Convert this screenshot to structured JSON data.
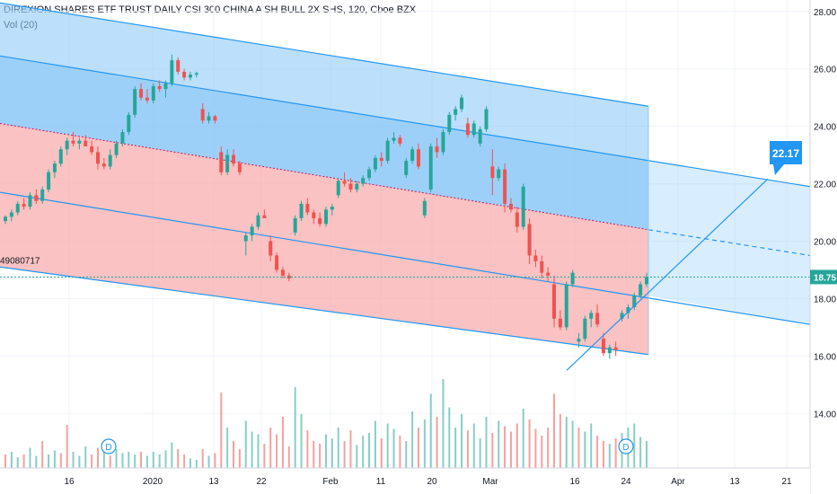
{
  "header": {
    "symbol_line": "DIREXION SHARES ETF TRUST DAILY CSI 300 CHINA A SH BULL 2X SHS, 120, Cboe BZX",
    "volume_line": "Vol (20)"
  },
  "left_label": "49080717",
  "price_badge": {
    "text": "18.75",
    "color": "#26a69a"
  },
  "callout": {
    "text": "22.17",
    "color": "#2196f3"
  },
  "chart_data": {
    "type": "candlestick",
    "title": "DIREXION SHARES ETF TRUST DAILY CSI 300 CHINA A SH BULL 2X SHS, 120, Cboe BZX",
    "y_axis": {
      "ticks": [
        14.0,
        16.0,
        18.0,
        20.0,
        22.0,
        24.0,
        26.0,
        28.0
      ],
      "tick_labels": [
        "14.00",
        "16.00",
        "18.00",
        "20.00",
        "22.00",
        "24.00",
        "26.00",
        "28.00"
      ],
      "range": [
        12.1,
        28.4
      ]
    },
    "x_axis": {
      "tick_labels": [
        "16",
        "2020",
        "13",
        "22",
        "Feb",
        "11",
        "20",
        "Mar",
        "16",
        "24",
        "Apr",
        "13",
        "21"
      ]
    },
    "last_price": 18.75,
    "colors": {
      "up": "#26a69a",
      "down": "#ef5350",
      "channel_line": "#2196f3",
      "upper_fill": "#90caf9",
      "lower_fill": "#f8a8a8"
    },
    "regression_channel": {
      "upper_line": {
        "start": 26.45,
        "end": 22.8,
        "extended_end": 21.9
      },
      "upper_outer": {
        "start": 28.3,
        "end": 24.7
      },
      "median": {
        "start": 24.1,
        "end": 20.4,
        "extended_end": 19.5
      },
      "lower_line": {
        "start": 21.7,
        "end": 18.1,
        "extended_end": 17.1
      },
      "lower_outer": {
        "start": 19.1,
        "end": 16.05
      }
    },
    "trend_line": {
      "start": 15.5,
      "end": 22.17,
      "label": "22.17"
    },
    "markers": [
      "D",
      "D"
    ],
    "candles": [
      [
        20.7,
        20.9,
        20.6,
        20.85
      ],
      [
        20.85,
        21.1,
        20.7,
        21.0
      ],
      [
        21.0,
        21.4,
        20.9,
        21.3
      ],
      [
        21.3,
        21.5,
        21.1,
        21.2
      ],
      [
        21.2,
        21.7,
        21.1,
        21.6
      ],
      [
        21.6,
        21.8,
        21.3,
        21.4
      ],
      [
        21.4,
        21.9,
        21.3,
        21.8
      ],
      [
        21.8,
        22.5,
        21.7,
        22.4
      ],
      [
        22.4,
        22.8,
        22.2,
        22.7
      ],
      [
        22.7,
        23.3,
        22.6,
        23.2
      ],
      [
        23.2,
        23.6,
        23.0,
        23.5
      ],
      [
        23.5,
        23.8,
        23.3,
        23.4
      ],
      [
        23.4,
        23.6,
        23.2,
        23.5
      ],
      [
        23.5,
        23.7,
        23.3,
        23.3
      ],
      [
        23.3,
        23.5,
        23.0,
        23.1
      ],
      [
        23.1,
        23.3,
        22.5,
        22.7
      ],
      [
        22.7,
        22.9,
        22.5,
        22.6
      ],
      [
        22.6,
        23.2,
        22.5,
        23.0
      ],
      [
        23.0,
        23.5,
        22.9,
        23.4
      ],
      [
        23.4,
        23.9,
        23.3,
        23.8
      ],
      [
        23.8,
        24.5,
        23.7,
        24.4
      ],
      [
        24.4,
        25.4,
        24.3,
        25.3
      ],
      [
        25.3,
        25.5,
        24.9,
        25.0
      ],
      [
        25.0,
        25.3,
        24.8,
        24.9
      ],
      [
        24.9,
        25.5,
        24.8,
        25.4
      ],
      [
        25.4,
        25.6,
        25.2,
        25.3
      ],
      [
        25.3,
        25.6,
        25.0,
        25.5
      ],
      [
        25.5,
        26.5,
        25.4,
        26.3
      ],
      [
        26.3,
        26.4,
        25.8,
        25.9
      ],
      [
        25.9,
        26.0,
        25.6,
        25.7
      ],
      [
        25.7,
        25.9,
        25.6,
        25.8
      ],
      [
        25.8,
        25.9,
        25.7,
        25.85
      ],
      [
        24.6,
        24.8,
        24.1,
        24.2
      ],
      [
        24.2,
        24.5,
        24.1,
        24.35
      ],
      [
        24.35,
        24.4,
        24.1,
        24.2
      ],
      [
        23.1,
        23.3,
        22.3,
        22.4
      ],
      [
        22.4,
        23.2,
        22.3,
        23.0
      ],
      [
        23.0,
        23.2,
        22.6,
        22.7
      ],
      [
        22.7,
        22.8,
        22.3,
        22.4
      ],
      [
        20.0,
        20.3,
        19.5,
        20.2
      ],
      [
        20.2,
        20.6,
        20.0,
        20.5
      ],
      [
        20.5,
        21.0,
        20.4,
        20.9
      ],
      [
        20.9,
        21.1,
        20.8,
        20.8
      ],
      [
        20.0,
        20.2,
        19.3,
        19.5
      ],
      [
        19.5,
        19.6,
        18.9,
        19.0
      ],
      [
        19.0,
        19.1,
        18.7,
        18.8
      ],
      [
        18.8,
        18.9,
        18.6,
        18.7
      ],
      [
        20.3,
        20.9,
        20.2,
        20.8
      ],
      [
        20.8,
        21.4,
        20.7,
        21.3
      ],
      [
        21.3,
        21.5,
        20.9,
        21.0
      ],
      [
        21.0,
        21.1,
        20.6,
        20.8
      ],
      [
        20.8,
        21.0,
        20.5,
        20.6
      ],
      [
        20.6,
        21.2,
        20.5,
        21.1
      ],
      [
        21.1,
        21.3,
        20.9,
        21.2
      ],
      [
        21.6,
        22.2,
        21.5,
        22.1
      ],
      [
        22.1,
        22.4,
        21.9,
        22.0
      ],
      [
        22.0,
        22.2,
        21.7,
        21.8
      ],
      [
        21.8,
        22.1,
        21.7,
        22.0
      ],
      [
        22.0,
        22.3,
        21.9,
        22.2
      ],
      [
        22.2,
        22.6,
        22.1,
        22.5
      ],
      [
        22.5,
        23.0,
        22.4,
        22.9
      ],
      [
        22.9,
        23.1,
        22.6,
        22.8
      ],
      [
        22.8,
        23.6,
        22.7,
        23.5
      ],
      [
        23.5,
        23.8,
        23.4,
        23.6
      ],
      [
        23.6,
        23.7,
        23.3,
        23.4
      ],
      [
        22.3,
        22.9,
        22.2,
        22.8
      ],
      [
        22.8,
        23.3,
        22.7,
        23.2
      ],
      [
        23.2,
        23.4,
        22.5,
        22.6
      ],
      [
        20.9,
        21.5,
        20.8,
        21.4
      ],
      [
        21.8,
        23.4,
        21.7,
        23.3
      ],
      [
        23.3,
        23.6,
        22.9,
        23.1
      ],
      [
        23.1,
        23.9,
        23.0,
        23.8
      ],
      [
        23.8,
        24.5,
        23.7,
        24.4
      ],
      [
        24.4,
        24.7,
        24.2,
        24.6
      ],
      [
        24.6,
        25.1,
        24.5,
        25.0
      ],
      [
        24.1,
        24.3,
        23.6,
        23.7
      ],
      [
        23.7,
        24.2,
        23.6,
        24.1
      ],
      [
        23.4,
        24.0,
        23.3,
        23.9
      ],
      [
        23.9,
        24.7,
        23.8,
        24.6
      ],
      [
        22.6,
        23.2,
        21.6,
        22.2
      ],
      [
        22.2,
        22.6,
        22.1,
        22.5
      ],
      [
        22.5,
        22.7,
        21.0,
        21.3
      ],
      [
        21.3,
        21.5,
        21.0,
        21.1
      ],
      [
        21.0,
        21.2,
        20.3,
        20.5
      ],
      [
        20.5,
        22.0,
        20.4,
        21.9
      ],
      [
        20.6,
        20.8,
        19.2,
        19.5
      ],
      [
        19.5,
        19.7,
        19.1,
        19.3
      ],
      [
        19.3,
        19.5,
        18.7,
        18.9
      ],
      [
        18.9,
        19.1,
        18.6,
        18.8
      ],
      [
        18.5,
        18.8,
        17.0,
        17.3
      ],
      [
        17.3,
        17.6,
        16.9,
        17.0
      ],
      [
        17.0,
        18.6,
        16.9,
        18.5
      ],
      [
        18.5,
        19.0,
        18.4,
        18.9
      ],
      [
        16.5,
        16.8,
        16.3,
        16.6
      ],
      [
        16.6,
        17.4,
        16.5,
        17.3
      ],
      [
        17.3,
        17.6,
        17.0,
        17.5
      ],
      [
        17.5,
        17.8,
        17.0,
        17.1
      ],
      [
        16.6,
        16.8,
        16.0,
        16.1
      ],
      [
        16.1,
        16.4,
        15.9,
        16.3
      ],
      [
        16.3,
        16.5,
        16.0,
        16.2
      ],
      [
        17.3,
        17.6,
        17.2,
        17.5
      ],
      [
        17.5,
        17.8,
        17.3,
        17.7
      ],
      [
        17.7,
        18.2,
        17.6,
        18.1
      ],
      [
        18.1,
        18.6,
        18.0,
        18.5
      ],
      [
        18.5,
        18.9,
        18.4,
        18.75
      ]
    ],
    "volumes": [
      [
        0.1,
        0
      ],
      [
        0.12,
        1
      ],
      [
        0.08,
        1
      ],
      [
        0.1,
        0
      ],
      [
        0.15,
        1
      ],
      [
        0.09,
        1
      ],
      [
        0.2,
        0
      ],
      [
        0.1,
        1
      ],
      [
        0.13,
        1
      ],
      [
        0.11,
        0
      ],
      [
        0.32,
        0
      ],
      [
        0.12,
        1
      ],
      [
        0.09,
        1
      ],
      [
        0.16,
        1
      ],
      [
        0.1,
        0
      ],
      [
        0.15,
        0
      ],
      [
        0.12,
        1
      ],
      [
        0.09,
        0
      ],
      [
        0.14,
        1
      ],
      [
        0.11,
        1
      ],
      [
        0.12,
        1
      ],
      [
        0.1,
        1
      ],
      [
        0.12,
        0
      ],
      [
        0.09,
        1
      ],
      [
        0.12,
        1
      ],
      [
        0.1,
        1
      ],
      [
        0.13,
        1
      ],
      [
        0.19,
        1
      ],
      [
        0.14,
        0
      ],
      [
        0.1,
        0
      ],
      [
        0.07,
        1
      ],
      [
        0.06,
        1
      ],
      [
        0.14,
        0
      ],
      [
        0.09,
        1
      ],
      [
        0.11,
        0
      ],
      [
        0.56,
        0
      ],
      [
        0.3,
        1
      ],
      [
        0.2,
        0
      ],
      [
        0.14,
        0
      ],
      [
        0.35,
        1
      ],
      [
        0.27,
        1
      ],
      [
        0.25,
        1
      ],
      [
        0.18,
        0
      ],
      [
        0.3,
        0
      ],
      [
        0.25,
        0
      ],
      [
        0.38,
        0
      ],
      [
        0.16,
        0
      ],
      [
        0.6,
        1
      ],
      [
        0.4,
        1
      ],
      [
        0.28,
        0
      ],
      [
        0.2,
        0
      ],
      [
        0.18,
        0
      ],
      [
        0.25,
        1
      ],
      [
        0.22,
        1
      ],
      [
        0.3,
        1
      ],
      [
        0.2,
        0
      ],
      [
        0.28,
        0
      ],
      [
        0.17,
        1
      ],
      [
        0.24,
        1
      ],
      [
        0.26,
        1
      ],
      [
        0.35,
        1
      ],
      [
        0.22,
        0
      ],
      [
        0.33,
        1
      ],
      [
        0.29,
        1
      ],
      [
        0.24,
        0
      ],
      [
        0.2,
        1
      ],
      [
        0.42,
        1
      ],
      [
        0.3,
        0
      ],
      [
        0.36,
        1
      ],
      [
        0.55,
        1
      ],
      [
        0.38,
        0
      ],
      [
        0.66,
        1
      ],
      [
        0.45,
        1
      ],
      [
        0.3,
        1
      ],
      [
        0.4,
        1
      ],
      [
        0.28,
        0
      ],
      [
        0.33,
        1
      ],
      [
        0.22,
        1
      ],
      [
        0.38,
        1
      ],
      [
        0.26,
        0
      ],
      [
        0.35,
        1
      ],
      [
        0.31,
        0
      ],
      [
        0.27,
        0
      ],
      [
        0.33,
        0
      ],
      [
        0.44,
        1
      ],
      [
        0.36,
        0
      ],
      [
        0.29,
        0
      ],
      [
        0.24,
        0
      ],
      [
        0.3,
        0
      ],
      [
        0.55,
        0
      ],
      [
        0.4,
        0
      ],
      [
        0.38,
        1
      ],
      [
        0.35,
        1
      ],
      [
        0.3,
        0
      ],
      [
        0.27,
        1
      ],
      [
        0.33,
        1
      ],
      [
        0.24,
        0
      ],
      [
        0.2,
        0
      ],
      [
        0.18,
        1
      ],
      [
        0.22,
        0
      ],
      [
        0.26,
        1
      ],
      [
        0.3,
        1
      ],
      [
        0.33,
        1
      ],
      [
        0.23,
        1
      ],
      [
        0.2,
        1
      ]
    ]
  }
}
